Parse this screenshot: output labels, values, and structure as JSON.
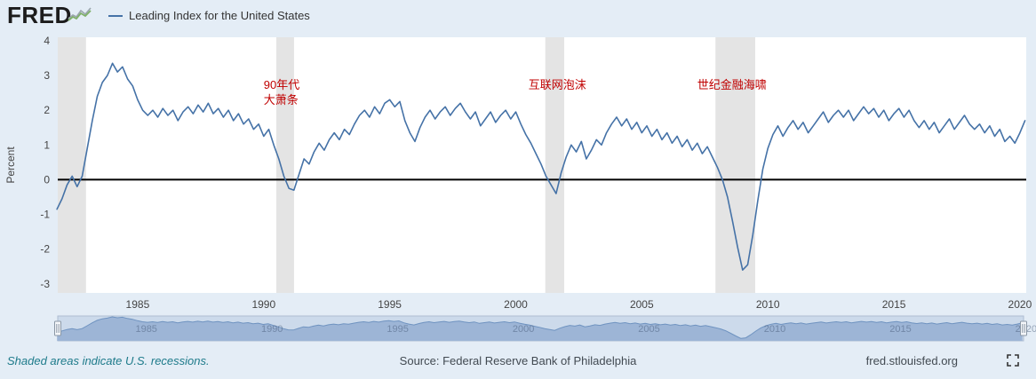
{
  "header": {
    "brand": "FRED",
    "legend": {
      "label": "Leading Index for the United States",
      "color": "#4572a7"
    }
  },
  "chart_data": {
    "type": "line",
    "title": "Leading Index for the United States",
    "xlabel": "",
    "ylabel": "Percent",
    "xlim": [
      1981.83,
      2020.25
    ],
    "ylim": [
      -3.26,
      4.1
    ],
    "x_ticks": [
      1985,
      1990,
      1995,
      2000,
      2005,
      2010,
      2015,
      2020
    ],
    "y_ticks": [
      4,
      3,
      2,
      1,
      0,
      -1,
      -2,
      -3
    ],
    "zero_line": 0,
    "grid": false,
    "recession_color": "#e4e4e4",
    "recessions": [
      [
        1981.83,
        1982.95
      ],
      [
        1990.5,
        1991.2
      ],
      [
        2001.17,
        2001.92
      ],
      [
        2007.92,
        2009.5
      ]
    ],
    "x_start": 1981.8,
    "x_step": 0.2,
    "series": [
      {
        "name": "Leading Index for the United States",
        "color": "#4572a7",
        "values": [
          -0.85,
          -0.55,
          -0.15,
          0.1,
          -0.2,
          0.1,
          0.9,
          1.7,
          2.4,
          2.8,
          3.0,
          3.35,
          3.1,
          3.25,
          2.9,
          2.7,
          2.3,
          2.0,
          1.85,
          2.0,
          1.8,
          2.05,
          1.85,
          2.0,
          1.7,
          1.95,
          2.1,
          1.9,
          2.15,
          1.95,
          2.2,
          1.9,
          2.05,
          1.8,
          2.0,
          1.7,
          1.9,
          1.6,
          1.75,
          1.45,
          1.6,
          1.25,
          1.45,
          1.0,
          0.6,
          0.1,
          -0.25,
          -0.3,
          0.15,
          0.6,
          0.45,
          0.8,
          1.05,
          0.85,
          1.15,
          1.35,
          1.15,
          1.45,
          1.3,
          1.6,
          1.85,
          2.0,
          1.8,
          2.1,
          1.9,
          2.2,
          2.3,
          2.1,
          2.25,
          1.7,
          1.35,
          1.1,
          1.5,
          1.8,
          2.0,
          1.75,
          1.95,
          2.1,
          1.85,
          2.05,
          2.2,
          1.95,
          1.75,
          1.95,
          1.55,
          1.75,
          1.95,
          1.65,
          1.85,
          2.0,
          1.75,
          1.95,
          1.6,
          1.3,
          1.05,
          0.75,
          0.45,
          0.1,
          -0.15,
          -0.4,
          0.2,
          0.65,
          1.0,
          0.8,
          1.1,
          0.6,
          0.85,
          1.15,
          1.0,
          1.35,
          1.6,
          1.8,
          1.55,
          1.75,
          1.45,
          1.65,
          1.35,
          1.55,
          1.25,
          1.45,
          1.15,
          1.35,
          1.05,
          1.25,
          0.95,
          1.15,
          0.85,
          1.05,
          0.75,
          0.95,
          0.65,
          0.35,
          0.0,
          -0.5,
          -1.2,
          -1.95,
          -2.6,
          -2.45,
          -1.6,
          -0.6,
          0.3,
          0.9,
          1.3,
          1.55,
          1.25,
          1.5,
          1.7,
          1.45,
          1.65,
          1.35,
          1.55,
          1.75,
          1.95,
          1.65,
          1.85,
          2.0,
          1.8,
          2.0,
          1.7,
          1.9,
          2.1,
          1.9,
          2.05,
          1.8,
          2.0,
          1.7,
          1.9,
          2.05,
          1.8,
          2.0,
          1.7,
          1.5,
          1.7,
          1.45,
          1.65,
          1.35,
          1.55,
          1.75,
          1.45,
          1.65,
          1.85,
          1.6,
          1.45,
          1.6,
          1.35,
          1.55,
          1.25,
          1.45,
          1.1,
          1.25,
          1.05,
          1.35,
          1.7
        ]
      }
    ],
    "annotations": [
      {
        "x": 1990.0,
        "y": 2.62,
        "lines": [
          "90年代",
          "大萧条"
        ],
        "color": "#c00000"
      },
      {
        "x": 2000.5,
        "y": 2.62,
        "lines": [
          "互联网泡沫"
        ],
        "color": "#c00000"
      },
      {
        "x": 2007.2,
        "y": 2.62,
        "lines": [
          "世纪金融海啸"
        ],
        "color": "#c00000"
      }
    ]
  },
  "navigator": {
    "labels": [
      "1985",
      "1990",
      "1995",
      "2000",
      "2005",
      "2010",
      "2015",
      "2020"
    ],
    "colors": {
      "bg": "#ccdaeb",
      "area": "#9db5d6",
      "line": "#6f93c0",
      "border": "#aebdd2"
    }
  },
  "footer": {
    "recession_note": "Shaded areas indicate U.S. recessions.",
    "source": "Source: Federal Reserve Bank of Philadelphia",
    "site": "fred.stlouisfed.org"
  }
}
